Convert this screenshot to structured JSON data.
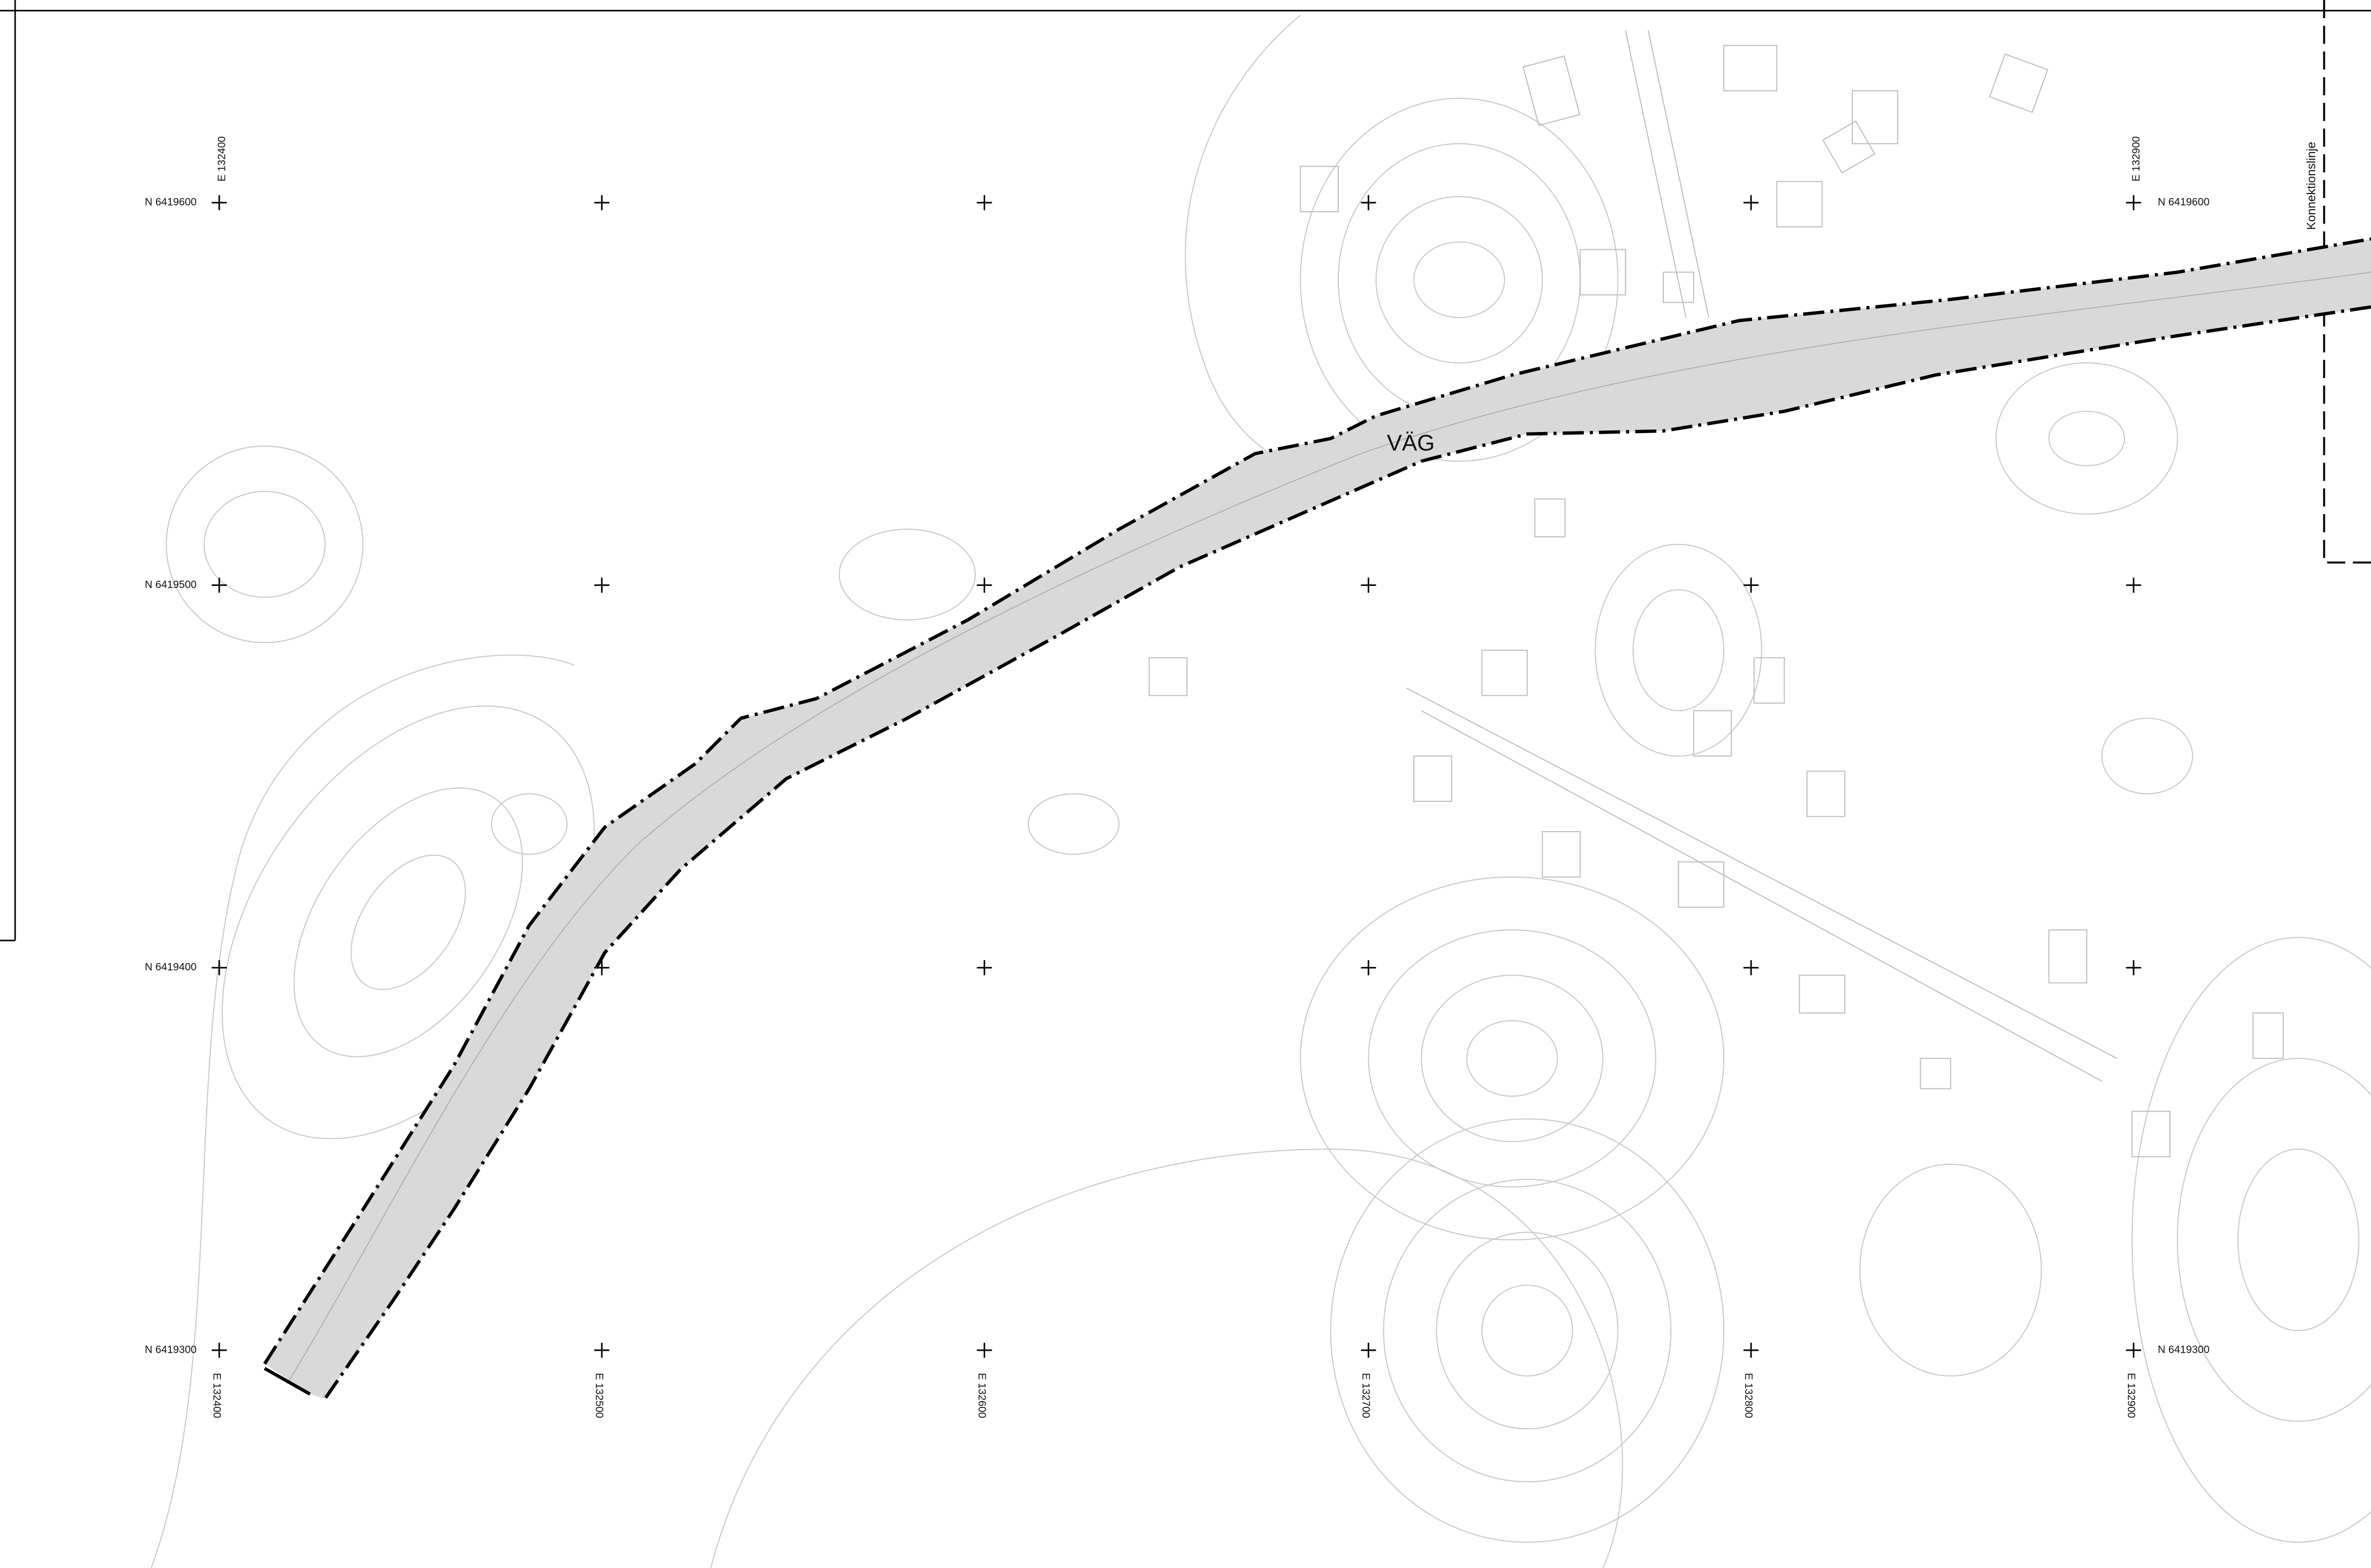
{
  "grid": {
    "northings": [
      "N 6419600",
      "N 6419500",
      "N 6419400",
      "N 6419300"
    ],
    "eastings": [
      "E 132400",
      "E 132500",
      "E 132600",
      "E 132700",
      "E 132800",
      "E 132900"
    ]
  },
  "labels": {
    "road": "VÄG",
    "connection_line": "Konnektionslinje"
  }
}
